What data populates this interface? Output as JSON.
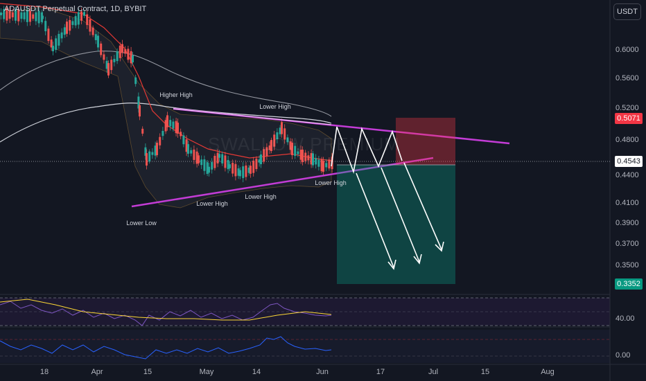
{
  "header": {
    "symbol_title": "ADAUSDT Perpetual Contract, 1D, BYBIT",
    "currency": "USDT"
  },
  "watermark": "SWALLOW PREMIUM",
  "price_axis": {
    "labels": [
      "0.6000",
      "0.5600",
      "0.5200",
      "0.4800",
      "0.4400",
      "0.4100",
      "0.3900",
      "0.3700",
      "0.3500"
    ],
    "current_price": "0.4543",
    "stop_price": "0.5071",
    "target_price": "0.3352",
    "colors": {
      "current": "#ffffff",
      "stop": "#f23645",
      "target": "#089981"
    }
  },
  "rsi_axis": {
    "label": "40.00"
  },
  "second_axis": {
    "label": "0.00"
  },
  "time_axis": [
    "18",
    "Apr",
    "15",
    "May",
    "14",
    "Jun",
    "17",
    "Jul",
    "15",
    "Aug"
  ],
  "annotations": [
    "Higher High",
    "Lower High",
    "Lower High",
    "Lower High",
    "Lower High",
    "Lower Low"
  ],
  "colors": {
    "bg": "#131722",
    "up": "#26a69a",
    "down": "#ef5350",
    "trendline": "#c33cd6",
    "ma_red": "#e53935",
    "ma_white": "#d1d4dc",
    "rsi": "#7e57c2",
    "rsi_ma": "#fdd835",
    "osc": "#2962ff"
  }
}
